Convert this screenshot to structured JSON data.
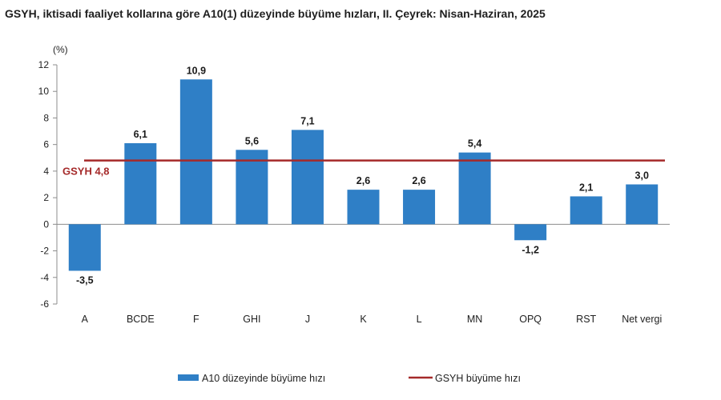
{
  "chart_data": {
    "type": "bar",
    "title": "GSYH, iktisadi faaliyet kollarına göre A10(1) düzeyinde büyüme hızları, II. Çeyrek: Nisan-Haziran, 2025",
    "ylabel": "(%)",
    "xlabel": "",
    "categories": [
      "A",
      "BCDE",
      "F",
      "GHI",
      "J",
      "K",
      "L",
      "MN",
      "OPQ",
      "RST",
      "Net vergi"
    ],
    "values": [
      -3.5,
      6.1,
      10.9,
      5.6,
      7.1,
      2.6,
      2.6,
      5.4,
      -1.2,
      2.1,
      3.0
    ],
    "value_labels": [
      "-3,5",
      "6,1",
      "10,9",
      "5,6",
      "7,1",
      "2,6",
      "2,6",
      "5,4",
      "-1,2",
      "2,1",
      "3,0"
    ],
    "ylim": [
      -6,
      12
    ],
    "yticks": [
      -6,
      -4,
      -2,
      0,
      2,
      4,
      6,
      8,
      10,
      12
    ],
    "ytick_labels": [
      "-6",
      "-4",
      "-2",
      "0",
      "2",
      "4",
      "6",
      "8",
      "10",
      "12"
    ],
    "reference_line": {
      "value": 4.8,
      "label": "GSYH 4,8",
      "color": "#a52a2a"
    },
    "bar_color": "#2f7fc6",
    "grid": false,
    "legend_position": "bottom",
    "legend": [
      {
        "label": "A10 düzeyinde büyüme hızı",
        "kind": "bar",
        "color": "#2f7fc6"
      },
      {
        "label": "GSYH büyüme hızı",
        "kind": "line",
        "color": "#a52a2a"
      }
    ]
  }
}
